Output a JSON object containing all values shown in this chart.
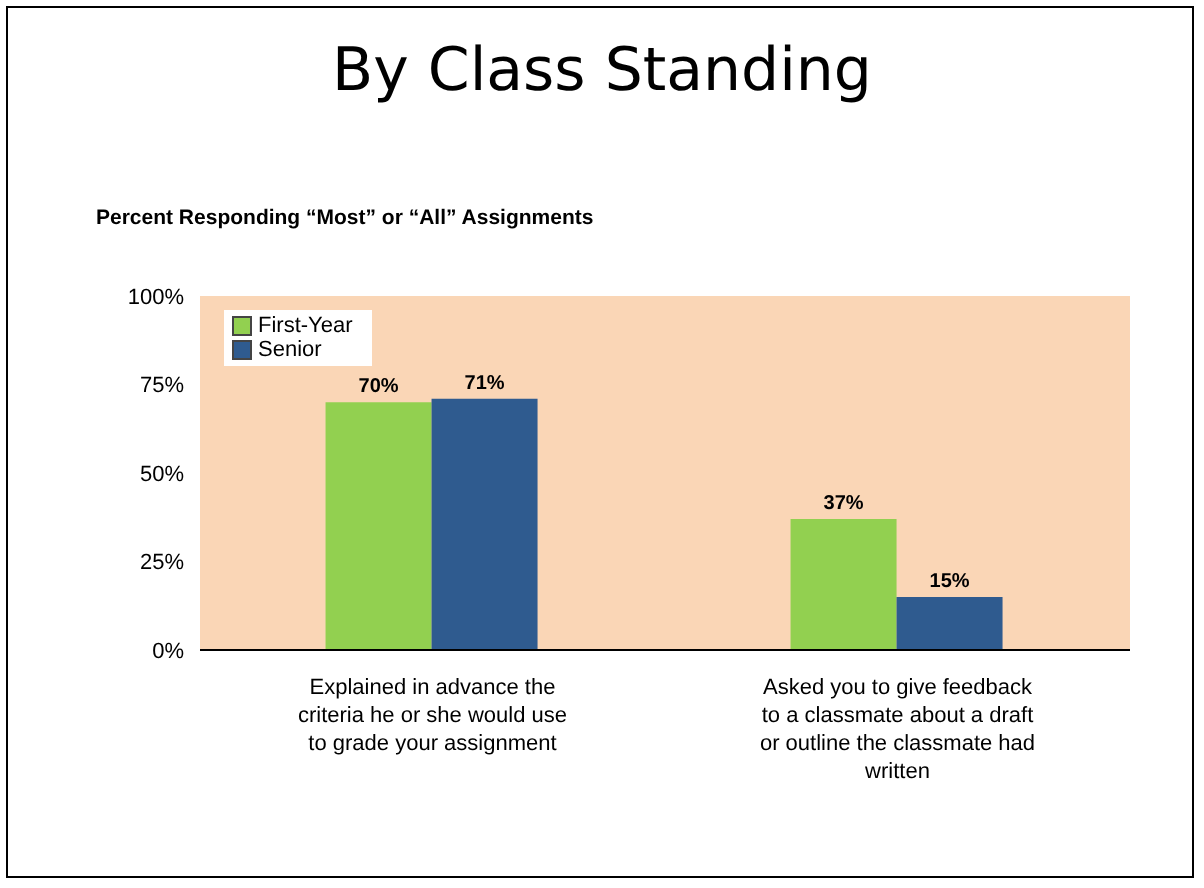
{
  "chart_data": {
    "type": "bar",
    "title": "By Class Standing",
    "subtitle": "Percent Responding “Most” or “All” Assignments",
    "categories": [
      "Explained in advance the criteria he or she would use to grade your assignment",
      "Asked you to give feedback to a classmate about a draft or outline the classmate had written"
    ],
    "series": [
      {
        "name": "First-Year",
        "color": "#92d050",
        "values": [
          70,
          37
        ],
        "value_labels": [
          "70%",
          "37%"
        ]
      },
      {
        "name": "Senior",
        "color": "#2f5b8f",
        "values": [
          71,
          15
        ],
        "value_labels": [
          "71%",
          "15%"
        ]
      }
    ],
    "ylim": [
      0,
      100
    ],
    "yticks": [
      {
        "value": 0,
        "label": "0%"
      },
      {
        "value": 25,
        "label": "25%"
      },
      {
        "value": 50,
        "label": "50%"
      },
      {
        "value": 75,
        "label": "75%"
      },
      {
        "value": 100,
        "label": "100%"
      }
    ],
    "legend": "top left"
  }
}
